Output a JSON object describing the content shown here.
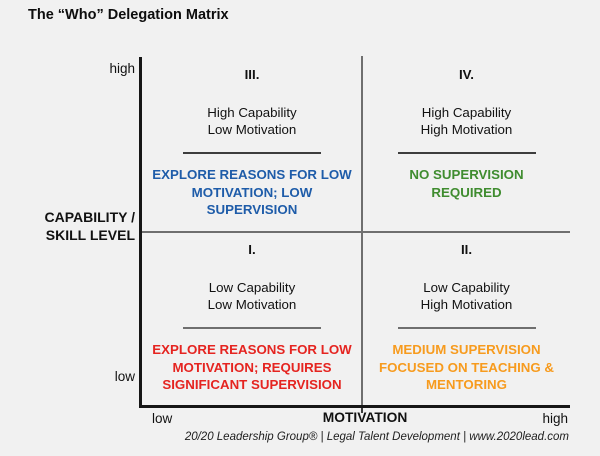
{
  "title": "The “Who” Delegation Matrix",
  "colors": {
    "axis": "#161616",
    "divider": "#6f6f6f",
    "quadrant_blue": "#1e5ca9",
    "quadrant_green": "#3f8c2f",
    "quadrant_red": "#e52420",
    "quadrant_orange": "#f79b1e"
  },
  "y_axis": {
    "label_line1": "CAPABILITY /",
    "label_line2": "SKILL LEVEL",
    "top_label": "high",
    "bottom_label": "low"
  },
  "x_axis": {
    "label": "MOTIVATION",
    "left_label": "low",
    "right_label": "high"
  },
  "quadrants": [
    {
      "position": "top-left",
      "numeral": "III.",
      "desc": [
        "High Capability",
        "Low Motivation"
      ],
      "supervision": [
        "EXPLORE REASONS FOR LOW",
        "MOTIVATION; LOW",
        "SUPERVISION"
      ],
      "supervision_color": "#1e5ca9"
    },
    {
      "position": "top-right",
      "numeral": "IV.",
      "desc": [
        "High Capability",
        "High Motivation"
      ],
      "supervision": [
        "NO SUPERVISION",
        "REQUIRED"
      ],
      "supervision_color": "#3f8c2f"
    },
    {
      "position": "bottom-left",
      "numeral": "I.",
      "desc": [
        "Low Capability",
        "Low Motivation"
      ],
      "supervision": [
        "EXPLORE REASONS FOR LOW",
        "MOTIVATION; REQUIRES",
        "SIGNIFICANT SUPERVISION"
      ],
      "supervision_color": "#e52420"
    },
    {
      "position": "bottom-right",
      "numeral": "II.",
      "desc": [
        "Low Capability",
        "High Motivation"
      ],
      "supervision": [
        "MEDIUM SUPERVISION",
        "FOCUSED ON TEACHING &",
        "MENTORING"
      ],
      "supervision_color": "#f79b1e"
    }
  ],
  "footer": "20/20 Leadership Group® | Legal Talent Development | www.2020lead.com"
}
